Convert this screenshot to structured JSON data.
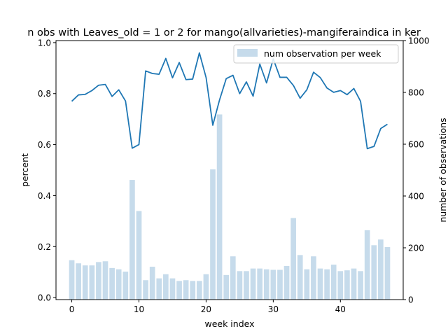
{
  "chart_data": {
    "type": "bar+line",
    "title": "n obs with Leaves_old = 1 or 2 for mango(allvarieties)-mangiferaindica in ker",
    "xlabel": "week index",
    "ylabel_left": "percent",
    "ylabel_right": "number of observations",
    "x_ticks": [
      0,
      10,
      20,
      30,
      40
    ],
    "y_left_ticks": [
      0.0,
      0.2,
      0.4,
      0.6,
      0.8,
      1.0
    ],
    "y_right_ticks": [
      0,
      200,
      400,
      600,
      800,
      1000
    ],
    "xlim": [
      -2.35,
      49.35
    ],
    "ylim_left": [
      -0.008,
      1.008
    ],
    "ylim_right": [
      0,
      1000
    ],
    "legend": {
      "label": "num observation per week",
      "placement": "top-right"
    },
    "colors": {
      "line": "#1f77b4",
      "bar": "#c6dbeb"
    },
    "weeks": [
      0,
      1,
      2,
      3,
      4,
      5,
      6,
      7,
      8,
      9,
      10,
      11,
      12,
      13,
      14,
      15,
      16,
      17,
      18,
      19,
      20,
      21,
      22,
      23,
      24,
      25,
      26,
      27,
      28,
      29,
      30,
      31,
      32,
      33,
      34,
      35,
      36,
      37,
      38,
      39,
      40,
      41,
      42,
      43,
      44,
      45,
      46,
      47
    ],
    "num_observations": [
      152,
      140,
      132,
      132,
      145,
      148,
      122,
      117,
      108,
      462,
      342,
      75,
      127,
      82,
      98,
      82,
      72,
      75,
      72,
      72,
      98,
      503,
      715,
      95,
      167,
      110,
      110,
      120,
      120,
      117,
      115,
      115,
      130,
      315,
      172,
      117,
      167,
      120,
      117,
      135,
      110,
      113,
      120,
      110,
      268,
      210,
      232,
      203
    ],
    "percent": [
      0.77,
      0.795,
      0.797,
      0.812,
      0.833,
      0.836,
      0.789,
      0.815,
      0.771,
      0.586,
      0.6,
      0.889,
      0.879,
      0.876,
      0.938,
      0.862,
      0.922,
      0.855,
      0.857,
      0.96,
      0.863,
      0.676,
      0.775,
      0.859,
      0.872,
      0.8,
      0.846,
      0.79,
      0.916,
      0.842,
      0.936,
      0.864,
      0.864,
      0.832,
      0.782,
      0.815,
      0.884,
      0.863,
      0.822,
      0.805,
      0.812,
      0.796,
      0.82,
      0.77,
      0.584,
      0.593,
      0.663,
      0.68
    ]
  }
}
